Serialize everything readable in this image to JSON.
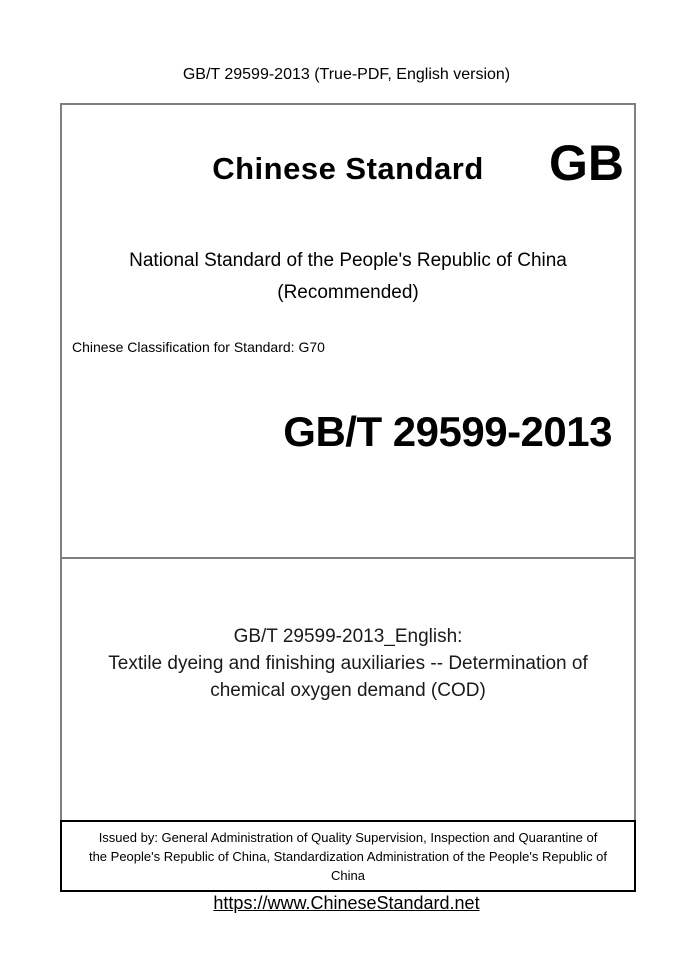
{
  "page": {
    "header": "GB/T 29599-2013 (True-PDF, English version)",
    "footer_link": "https://www.ChineseStandard.net"
  },
  "cover": {
    "brand_title": "Chinese Standard",
    "brand_code": "GB",
    "national_line1": "National Standard of the People's Republic of China",
    "national_line2": "(Recommended)",
    "classification": "Chinese Classification for Standard: G70",
    "standard_code": "GB/T 29599-2013",
    "title_lines": [
      "GB/T 29599-2013_English:",
      "Textile dyeing and finishing auxiliaries -- Determination of",
      "chemical oxygen demand (COD)"
    ],
    "issued_by_lines": [
      "Issued by: General Administration of Quality Supervision, Inspection and Quarantine of",
      "the People's Republic of China, Standardization Administration of the People's Republic of",
      "China"
    ]
  },
  "colors": {
    "outer_border_gray": "#7f7f7f",
    "issued_border_black": "#000000",
    "text": "#000000"
  }
}
